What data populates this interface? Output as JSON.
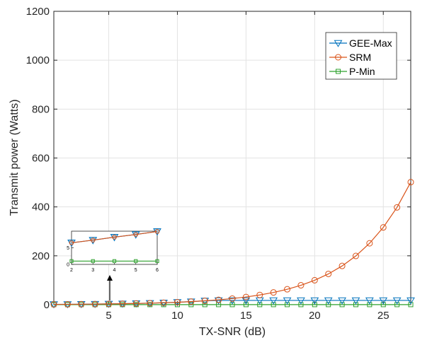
{
  "chart_data": {
    "type": "line",
    "title": "",
    "xlabel": "TX-SNR (dB)",
    "ylabel": "Transmit power  (Watts)",
    "xlim": [
      1,
      27
    ],
    "ylim": [
      0,
      1200
    ],
    "xticks": [
      5,
      10,
      15,
      20,
      25
    ],
    "yticks": [
      0,
      200,
      400,
      600,
      800,
      1000,
      1200
    ],
    "grid": true,
    "legend_position": "top-right",
    "x": [
      1,
      2,
      3,
      4,
      5,
      6,
      7,
      8,
      9,
      10,
      11,
      12,
      13,
      14,
      15,
      16,
      17,
      18,
      19,
      20,
      21,
      22,
      23,
      24,
      25,
      26,
      27
    ],
    "series": [
      {
        "name": "GEE-Max",
        "color": "#0072BD",
        "marker": "triangle-down",
        "values": [
          1.3,
          1.6,
          2.0,
          2.5,
          3.2,
          4.0,
          5.0,
          6.3,
          7.9,
          10.0,
          12.6,
          15.8,
          17.5,
          17.5,
          17.5,
          17.5,
          17.5,
          17.5,
          17.5,
          17.5,
          17.5,
          17.5,
          17.5,
          17.5,
          17.5,
          17.5,
          17.5
        ]
      },
      {
        "name": "SRM",
        "color": "#D95319",
        "marker": "circle",
        "values": [
          1.3,
          1.6,
          2.0,
          2.5,
          3.2,
          4.0,
          5.0,
          6.3,
          7.9,
          10.0,
          12.6,
          15.8,
          20.0,
          25.1,
          31.6,
          39.8,
          50.1,
          63.1,
          79.4,
          100.0,
          125.9,
          158.5,
          199.5,
          251.2,
          316.2,
          398.1,
          501.2
        ]
      },
      {
        "name": "P-Min",
        "color": "#2CA02C",
        "marker": "square",
        "values": [
          0.3,
          0.3,
          0.3,
          0.3,
          0.3,
          0.3,
          0.3,
          0.3,
          0.3,
          0.3,
          0.3,
          0.3,
          0.3,
          0.3,
          0.3,
          0.3,
          0.3,
          0.3,
          0.3,
          0.3,
          0.3,
          0.3,
          0.3,
          0.3,
          0.3,
          0.3,
          0.3
        ]
      }
    ],
    "inset": {
      "x": [
        2,
        3,
        4,
        5,
        6
      ],
      "xticks": [
        2,
        3,
        4,
        5,
        6
      ],
      "yticks": [
        0,
        5
      ],
      "ylim": [
        0,
        10
      ],
      "series": [
        {
          "name": "GEE-Max",
          "values": [
            6.5,
            7.3,
            8.2,
            9.0,
            9.9
          ]
        },
        {
          "name": "SRM",
          "values": [
            6.5,
            7.3,
            8.2,
            9.0,
            9.9
          ]
        },
        {
          "name": "P-Min",
          "values": [
            1.0,
            1.0,
            1.0,
            1.0,
            1.0
          ]
        }
      ]
    }
  }
}
